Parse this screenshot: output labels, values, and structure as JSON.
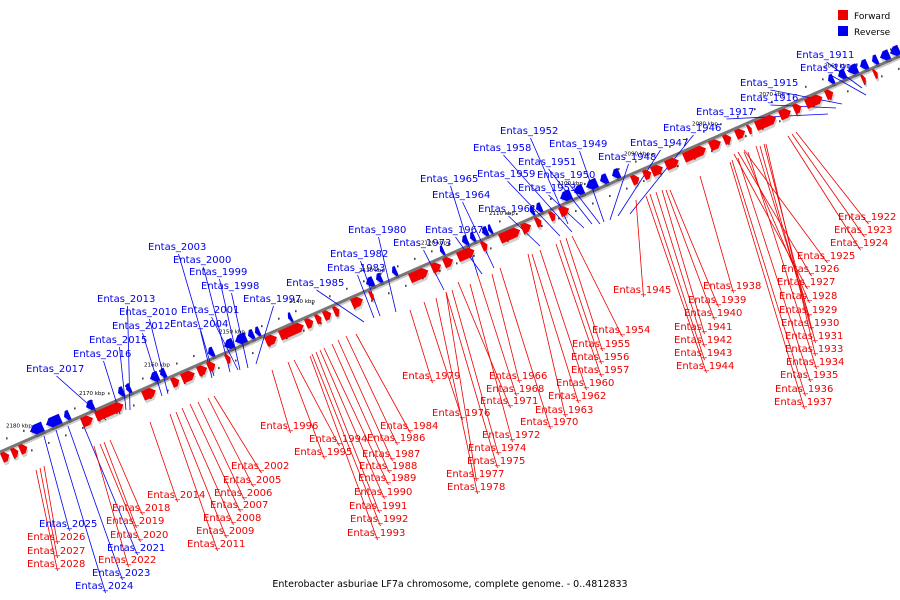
{
  "legend": [
    {
      "label": "Forward",
      "color": "#ee0000"
    },
    {
      "label": "Reverse",
      "color": "#0000ee"
    }
  ],
  "caption": "Enterobacter asburiae LF7a chromosome, complete genome. - 0..4812833",
  "colors": {
    "forward": "#ee0000",
    "reverse": "#0000ee",
    "backbone": "#777777"
  },
  "ticks": [
    "2180 kbp",
    "2170 kbp",
    "2160 kbp",
    "2150 kbp",
    "2140 kbp",
    "2130 kbp",
    "2120 kbp",
    "2110 kbp",
    "2100 kbp",
    "2090 kbp",
    "2080 kbp",
    "2070 kbp",
    "2060 kbp"
  ],
  "reverse_genes": [
    "Entas_1911",
    "Entas_1913",
    "Entas_1915",
    "Entas_1916",
    "Entas_1917",
    "Entas_1946",
    "Entas_1947",
    "Entas_1948",
    "Entas_1949",
    "Entas_1950",
    "Entas_1951",
    "Entas_1952",
    "Entas_1953",
    "Entas_1958",
    "Entas_1959",
    "Entas_1961",
    "Entas_1964",
    "Entas_1965",
    "Entas_1967",
    "Entas_1973",
    "Entas_1980",
    "Entas_1982",
    "Entas_1983",
    "Entas_1985",
    "Entas_1997",
    "Entas_1998",
    "Entas_1999",
    "Entas_2000",
    "Entas_2001",
    "Entas_2003",
    "Entas_2004",
    "Entas_2010",
    "Entas_2012",
    "Entas_2013",
    "Entas_2015",
    "Entas_2016",
    "Entas_2017",
    "Entas_2021",
    "Entas_2023",
    "Entas_2024",
    "Entas_2025"
  ],
  "forward_genes": [
    "Entas_1922",
    "Entas_1923",
    "Entas_1924",
    "Entas_1925",
    "Entas_1926",
    "Entas_1927",
    "Entas_1928",
    "Entas_1929",
    "Entas_1930",
    "Entas_1931",
    "Entas_1933",
    "Entas_1934",
    "Entas_1935",
    "Entas_1936",
    "Entas_1937",
    "Entas_1938",
    "Entas_1939",
    "Entas_1940",
    "Entas_1941",
    "Entas_1942",
    "Entas_1943",
    "Entas_1944",
    "Entas_1945",
    "Entas_1954",
    "Entas_1955",
    "Entas_1956",
    "Entas_1957",
    "Entas_1960",
    "Entas_1962",
    "Entas_1963",
    "Entas_1966",
    "Entas_1968",
    "Entas_1970",
    "Entas_1971",
    "Entas_1972",
    "Entas_1974",
    "Entas_1975",
    "Entas_1976",
    "Entas_1977",
    "Entas_1978",
    "Entas_1979",
    "Entas_1984",
    "Entas_1986",
    "Entas_1987",
    "Entas_1988",
    "Entas_1989",
    "Entas_1990",
    "Entas_1991",
    "Entas_1992",
    "Entas_1993",
    "Entas_1994",
    "Entas_1995",
    "Entas_1996",
    "Entas_2002",
    "Entas_2005",
    "Entas_2006",
    "Entas_2007",
    "Entas_2008",
    "Entas_2009",
    "Entas_2011",
    "Entas_2014",
    "Entas_2018",
    "Entas_2019",
    "Entas_2020",
    "Entas_2022",
    "Entas_2026",
    "Entas_2027",
    "Entas_2028"
  ]
}
